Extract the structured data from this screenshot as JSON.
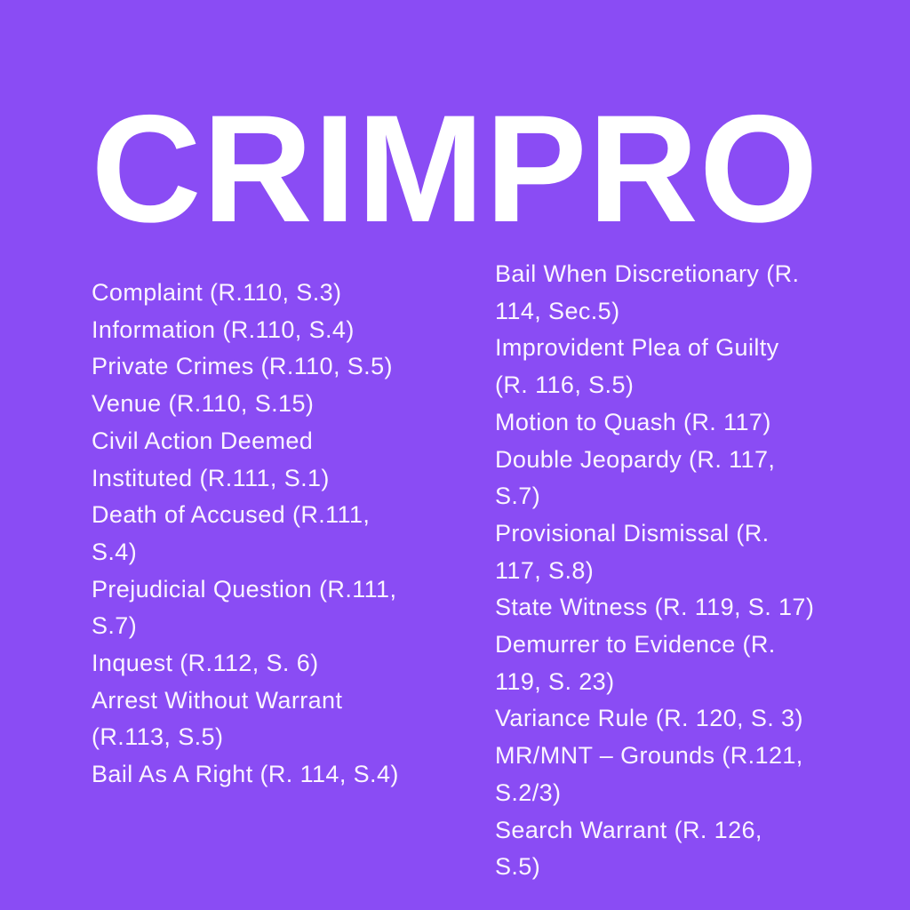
{
  "title": "CRIMPRO",
  "colors": {
    "background": "#8a4cf4",
    "text": "#fbf4ff"
  },
  "left_column": [
    [
      "Complaint (R.110, S.3)"
    ],
    [
      "Information (R.110, S.4)"
    ],
    [
      "Private Crimes (R.110, S.5)"
    ],
    [
      "Venue (R.110, S.15)"
    ],
    [
      "Civil Action Deemed",
      "Instituted (R.111, S.1)"
    ],
    [
      "Death of Accused (R.111,",
      "S.4)"
    ],
    [
      "Prejudicial Question (R.111,",
      "S.7)"
    ],
    [
      "Inquest (R.112, S. 6)"
    ],
    [
      "Arrest Without Warrant",
      "(R.113, S.5)"
    ],
    [
      "Bail As A Right (R. 114, S.4)"
    ]
  ],
  "right_column": [
    [
      "Bail When Discretionary (R.",
      "114, Sec.5)"
    ],
    [
      "Improvident Plea of Guilty",
      "(R. 116, S.5)"
    ],
    [
      "Motion to Quash (R. 117)"
    ],
    [
      "Double Jeopardy (R. 117,",
      "S.7)"
    ],
    [
      "Provisional Dismissal (R.",
      "117, S.8)"
    ],
    [
      "State Witness (R. 119, S. 17)"
    ],
    [
      "Demurrer to Evidence (R.",
      "119, S. 23)"
    ],
    [
      "Variance Rule (R. 120, S. 3)"
    ],
    [
      "MR/MNT – Grounds (R.121,",
      "S.2/3)"
    ],
    [
      "Search Warrant (R. 126,",
      "S.5)"
    ]
  ]
}
